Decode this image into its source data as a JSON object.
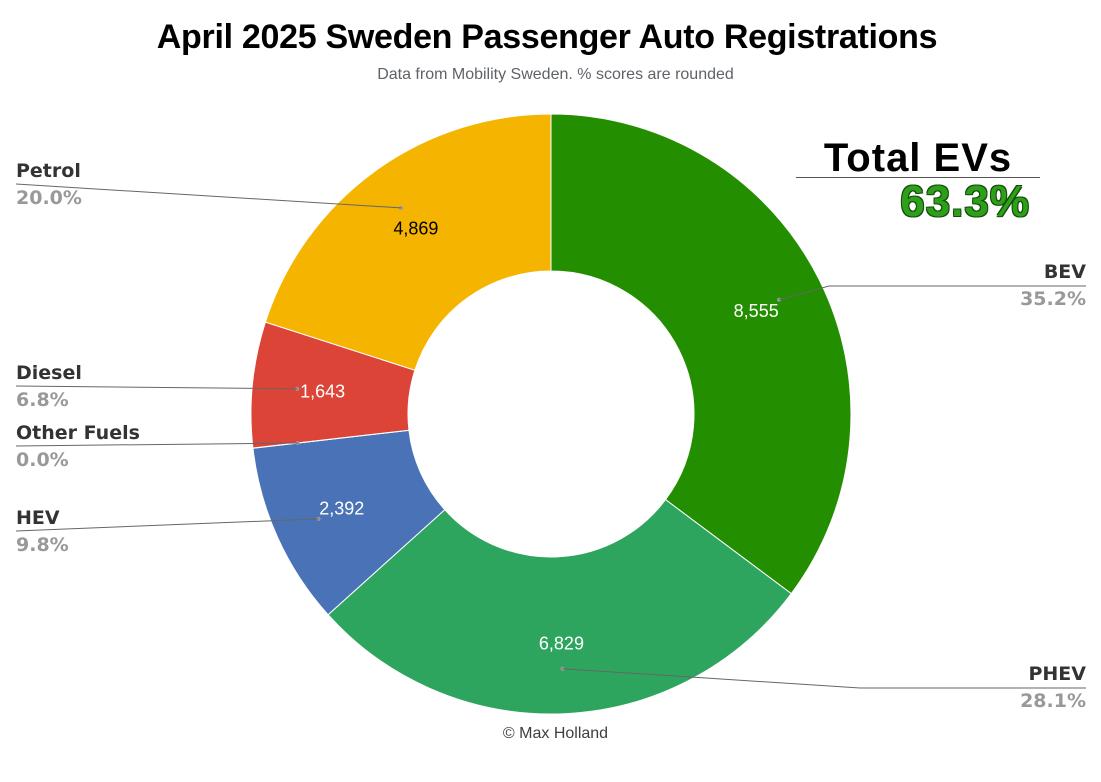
{
  "title": "April 2025 Sweden Passenger Auto Registrations",
  "subtitle": "Data from Mobility Sweden. % scores are rounded",
  "credit": "© Max Holland",
  "total_evs": {
    "label": "Total EVs",
    "value": "63.3%",
    "color": "#2f9e1a"
  },
  "chart_data": {
    "type": "pie",
    "donut": true,
    "title": "April 2025 Sweden Passenger Auto Registrations",
    "subtitle": "Data from Mobility Sweden. % scores are rounded",
    "legend": "none",
    "slices": [
      {
        "name": "BEV",
        "value": 8555,
        "value_label": "8,555",
        "percent_label": "35.2%",
        "color": "#238f00",
        "value_text_color": "#ffffff"
      },
      {
        "name": "PHEV",
        "value": 6829,
        "value_label": "6,829",
        "percent_label": "28.1%",
        "color": "#2ea55e",
        "value_text_color": "#ffffff"
      },
      {
        "name": "HEV",
        "value": 2392,
        "value_label": "2,392",
        "percent_label": "9.8%",
        "color": "#4a72b7",
        "value_text_color": "#ffffff"
      },
      {
        "name": "Other Fuels",
        "value": 3,
        "value_label": "",
        "percent_label": "0.0%",
        "color": "#9e9e9e",
        "value_text_color": "#ffffff"
      },
      {
        "name": "Diesel",
        "value": 1643,
        "value_label": "1,643",
        "percent_label": "6.8%",
        "color": "#db4437",
        "value_text_color": "#ffffff"
      },
      {
        "name": "Petrol",
        "value": 4869,
        "value_label": "4,869",
        "percent_label": "20.0%",
        "color": "#f4b400",
        "value_text_color": "#000000"
      }
    ]
  }
}
